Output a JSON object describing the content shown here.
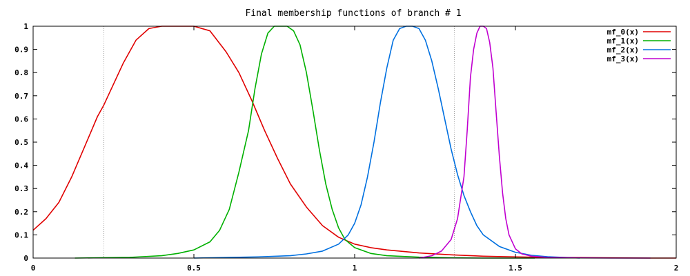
{
  "chart_data": {
    "type": "line",
    "title": "Final membership functions of branch # 1",
    "xlabel": "",
    "ylabel": "",
    "xlim": [
      0,
      2
    ],
    "ylim": [
      0,
      1
    ],
    "xticks": [
      0,
      0.5,
      1,
      1.5,
      2
    ],
    "xtick_labels": [
      "0",
      "0.5",
      "1",
      "1.5",
      "2"
    ],
    "yticks": [
      0,
      0.1,
      0.2,
      0.3,
      0.4,
      0.5,
      0.6,
      0.7,
      0.8,
      0.9,
      1
    ],
    "ytick_labels": [
      "0",
      "0.1",
      "0.2",
      "0.3",
      "0.4",
      "0.5",
      "0.6",
      "0.7",
      "0.8",
      "0.9",
      "1"
    ],
    "grid": false,
    "legend_position": "top-right",
    "vlines": [
      0.22,
      1.31
    ],
    "series": [
      {
        "name": "mf_0(x)",
        "color": "#e00000",
        "x": [
          0,
          0.04,
          0.08,
          0.12,
          0.16,
          0.2,
          0.22,
          0.24,
          0.28,
          0.32,
          0.36,
          0.4,
          0.45,
          0.5,
          0.55,
          0.6,
          0.64,
          0.68,
          0.72,
          0.76,
          0.8,
          0.85,
          0.9,
          0.95,
          1.0,
          1.05,
          1.1,
          1.2,
          1.3,
          1.4,
          1.5,
          1.6,
          1.7,
          1.8,
          1.92,
          2.0
        ],
        "y": [
          0.12,
          0.17,
          0.24,
          0.35,
          0.48,
          0.61,
          0.66,
          0.72,
          0.84,
          0.94,
          0.99,
          1.0,
          1.0,
          1.0,
          0.98,
          0.89,
          0.8,
          0.68,
          0.55,
          0.43,
          0.32,
          0.22,
          0.14,
          0.09,
          0.06,
          0.045,
          0.035,
          0.022,
          0.014,
          0.008,
          0.005,
          0.003,
          0.002,
          0.001,
          0.0,
          0.0
        ]
      },
      {
        "name": "mf_1(x)",
        "color": "#00b000",
        "x": [
          0.13,
          0.3,
          0.4,
          0.45,
          0.5,
          0.55,
          0.58,
          0.61,
          0.64,
          0.67,
          0.69,
          0.71,
          0.73,
          0.75,
          0.77,
          0.79,
          0.81,
          0.83,
          0.85,
          0.87,
          0.89,
          0.91,
          0.93,
          0.95,
          0.97,
          1.0,
          1.05,
          1.1,
          1.2,
          1.3,
          1.4,
          1.5,
          1.56
        ],
        "y": [
          0.0,
          0.003,
          0.01,
          0.02,
          0.035,
          0.07,
          0.12,
          0.21,
          0.37,
          0.55,
          0.73,
          0.88,
          0.97,
          1.0,
          1.0,
          1.0,
          0.98,
          0.92,
          0.8,
          0.64,
          0.47,
          0.32,
          0.21,
          0.13,
          0.08,
          0.045,
          0.02,
          0.01,
          0.004,
          0.001,
          0.0,
          0.0,
          0.0
        ]
      },
      {
        "name": "mf_2(x)",
        "color": "#0070e0",
        "x": [
          0.5,
          0.7,
          0.8,
          0.85,
          0.9,
          0.95,
          0.98,
          1.0,
          1.02,
          1.04,
          1.06,
          1.08,
          1.1,
          1.12,
          1.14,
          1.16,
          1.18,
          1.2,
          1.22,
          1.24,
          1.26,
          1.28,
          1.3,
          1.32,
          1.34,
          1.36,
          1.38,
          1.4,
          1.45,
          1.5,
          1.55,
          1.6,
          1.65,
          1.7
        ],
        "y": [
          0.0,
          0.005,
          0.01,
          0.018,
          0.03,
          0.06,
          0.1,
          0.15,
          0.23,
          0.35,
          0.5,
          0.67,
          0.82,
          0.94,
          0.99,
          1.0,
          1.0,
          0.99,
          0.94,
          0.85,
          0.73,
          0.6,
          0.47,
          0.36,
          0.27,
          0.2,
          0.14,
          0.1,
          0.05,
          0.025,
          0.012,
          0.006,
          0.003,
          0.0
        ]
      },
      {
        "name": "mf_3(x)",
        "color": "#c000d0",
        "x": [
          1.2,
          1.24,
          1.27,
          1.3,
          1.32,
          1.34,
          1.35,
          1.36,
          1.37,
          1.38,
          1.39,
          1.4,
          1.41,
          1.42,
          1.43,
          1.44,
          1.45,
          1.46,
          1.47,
          1.48,
          1.5,
          1.52,
          1.55,
          1.6,
          1.7,
          1.8,
          1.92
        ],
        "y": [
          0.0,
          0.01,
          0.03,
          0.08,
          0.17,
          0.35,
          0.55,
          0.78,
          0.9,
          0.97,
          1.0,
          1.0,
          0.99,
          0.93,
          0.82,
          0.63,
          0.44,
          0.28,
          0.17,
          0.1,
          0.04,
          0.018,
          0.008,
          0.003,
          0.001,
          0.0,
          0.0
        ]
      }
    ]
  }
}
